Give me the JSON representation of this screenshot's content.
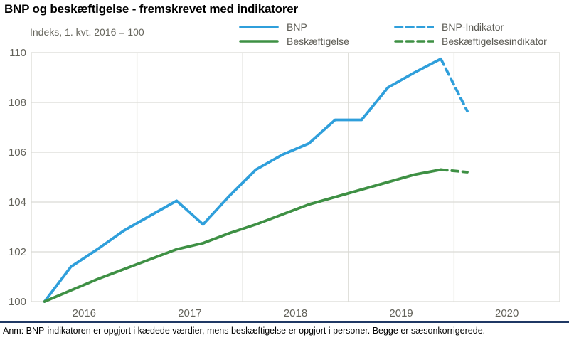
{
  "header": {
    "title": "BNP og beskæftigelse - fremskrevet med indikatorer",
    "subtitle": "Indeks, 1. kvt. 2016  = 100"
  },
  "legend": {
    "items": [
      {
        "label": "BNP",
        "color": "#2F9FDB",
        "style": "solid"
      },
      {
        "label": "Beskæftigelse",
        "color": "#3E9044",
        "style": "solid"
      },
      {
        "label": "BNP-Indikator",
        "color": "#2F9FDB",
        "style": "dashed"
      },
      {
        "label": "Beskæftigelsesindikator",
        "color": "#3E9044",
        "style": "dashed"
      }
    ]
  },
  "chart_data": {
    "type": "line",
    "title": "BNP og beskæftigelse - fremskrevet med indikatorer",
    "ylabel": "Indeks, 1. kvt. 2016 = 100",
    "xlabel": "",
    "grid": true,
    "legend_position": "top",
    "ylim": [
      100,
      110
    ],
    "y_ticks": [
      100,
      102,
      104,
      106,
      108,
      110
    ],
    "x_tick_labels": [
      "2016",
      "2017",
      "2018",
      "2019",
      "2020"
    ],
    "x_unit": "quarter",
    "x_start": "2016-Q1",
    "series": [
      {
        "name": "BNP",
        "color": "#2F9FDB",
        "dashed": false,
        "start_quarter": 0,
        "values": [
          100,
          101.4,
          102.1,
          102.85,
          103.45,
          104.05,
          103.1,
          104.25,
          105.3,
          105.9,
          106.35,
          107.3,
          107.3,
          108.6,
          109.2,
          109.75
        ]
      },
      {
        "name": "Beskæftigelse",
        "color": "#3E9044",
        "dashed": false,
        "start_quarter": 0,
        "values": [
          100,
          100.45,
          100.9,
          101.3,
          101.7,
          102.1,
          102.35,
          102.75,
          103.1,
          103.5,
          103.9,
          104.2,
          104.5,
          104.8,
          105.1,
          105.3
        ]
      },
      {
        "name": "BNP-Indikator",
        "color": "#2F9FDB",
        "dashed": true,
        "start_quarter": 15,
        "values": [
          109.75,
          107.65
        ]
      },
      {
        "name": "Beskæftigelsesindikator",
        "color": "#3E9044",
        "dashed": true,
        "start_quarter": 15,
        "values": [
          105.3,
          105.2
        ]
      }
    ]
  },
  "footer": {
    "note": "Anm: BNP-indikatoren er opgjort i kædede værdier, mens beskæftigelse er opgjort i personer. Begge er sæsonkorrigerede."
  },
  "colors": {
    "accent_blue": "#2F9FDB",
    "accent_green": "#3E9044",
    "gridline": "#DBDBD5",
    "muted_text": "#66655C",
    "tick_text": "#63625A",
    "separator": "#1F3864"
  }
}
